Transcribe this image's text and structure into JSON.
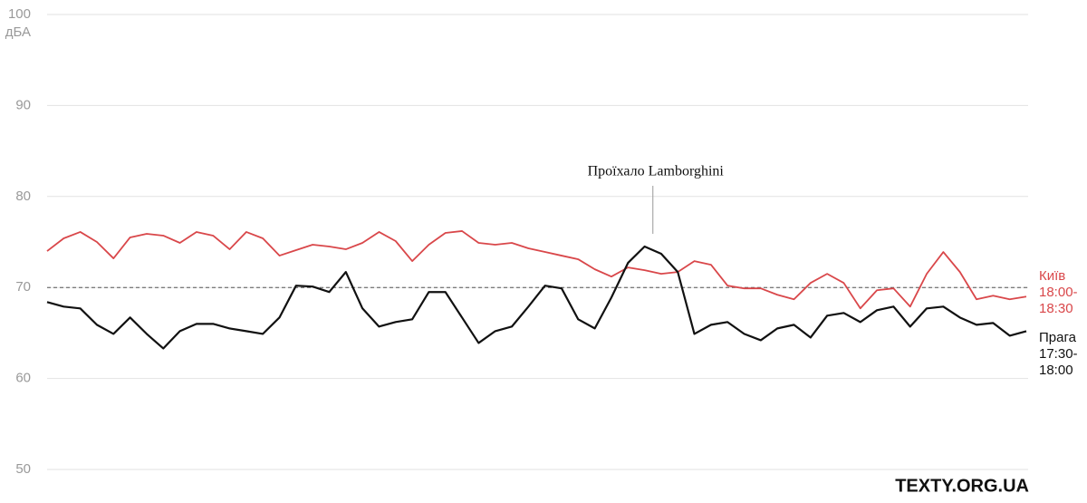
{
  "chart_data": {
    "type": "line",
    "y_unit": "дБА",
    "categories": [
      null,
      null,
      null,
      null,
      null,
      null,
      null,
      null,
      null,
      null,
      null,
      null,
      null,
      null,
      null,
      null,
      null,
      null,
      null,
      null,
      null,
      null,
      null,
      null,
      null,
      null,
      null,
      null,
      null,
      null,
      null,
      null,
      null,
      null,
      null,
      null,
      null,
      null,
      null,
      null,
      null,
      null,
      null,
      null,
      null,
      null,
      null,
      null,
      null,
      null,
      null,
      null,
      null,
      null,
      null,
      null,
      null,
      null,
      null,
      null
    ],
    "series": [
      {
        "name": "Київ 18:00-18:30",
        "color": "#d9474a",
        "values": [
          74.0,
          75.4,
          76.1,
          75.0,
          73.2,
          75.5,
          75.9,
          75.7,
          74.9,
          76.1,
          75.7,
          74.2,
          76.1,
          75.4,
          73.5,
          74.1,
          74.7,
          74.5,
          74.2,
          74.9,
          76.1,
          75.1,
          72.9,
          74.7,
          76.0,
          76.2,
          74.9,
          74.7,
          74.9,
          74.3,
          73.9,
          73.5,
          73.1,
          72.0,
          71.2,
          72.2,
          71.9,
          71.5,
          71.7,
          72.9,
          72.5,
          70.2,
          69.9,
          69.9,
          69.2,
          68.7,
          70.5,
          71.5,
          70.5,
          67.7,
          69.7,
          69.9,
          67.9,
          71.5,
          73.9,
          71.7,
          68.7,
          69.1,
          68.7,
          69.0
        ]
      },
      {
        "name": "Прага 17:30-18:00",
        "color": "#111111",
        "values": [
          68.4,
          67.9,
          67.7,
          65.9,
          64.9,
          66.7,
          64.9,
          63.3,
          65.2,
          66.0,
          66.0,
          65.5,
          65.2,
          64.9,
          66.7,
          70.2,
          70.1,
          69.5,
          71.7,
          67.7,
          65.7,
          66.2,
          66.5,
          69.5,
          69.5,
          66.7,
          63.9,
          65.2,
          65.7,
          67.9,
          70.2,
          69.9,
          66.5,
          65.5,
          68.9,
          72.7,
          74.5,
          73.7,
          71.7,
          64.9,
          65.9,
          66.2,
          64.9,
          64.2,
          65.5,
          65.9,
          64.5,
          66.9,
          67.2,
          66.2,
          67.5,
          67.9,
          65.7,
          67.7,
          67.9,
          66.7,
          65.9,
          66.1,
          64.7,
          65.2
        ]
      }
    ],
    "ylim": [
      50,
      100
    ],
    "yticks": [
      50,
      60,
      70,
      80,
      90,
      100
    ],
    "grid": true,
    "reference_line": 70,
    "annotation": {
      "text": "Проїхало Lamborghini",
      "x_index": 36.5
    },
    "source": "TEXTY.ORG.UA"
  }
}
